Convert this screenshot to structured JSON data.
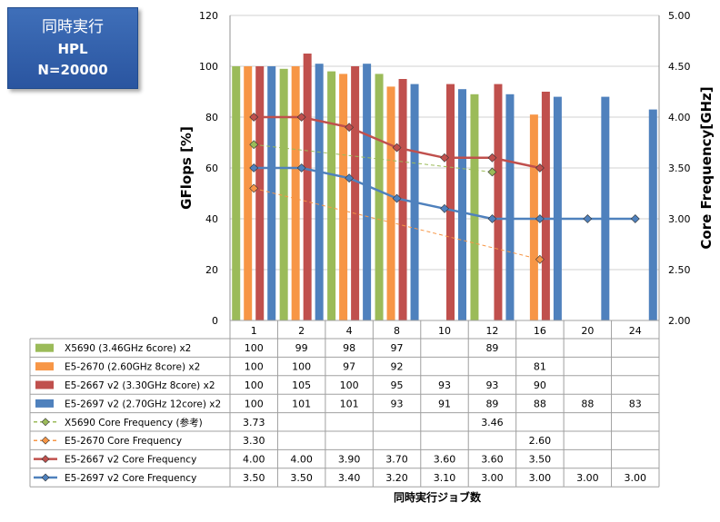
{
  "title_box": {
    "line1": "同時実行",
    "line2": "HPL",
    "line3": "N=20000"
  },
  "chart_data": {
    "type": "bar",
    "categories": [
      "1",
      "2",
      "4",
      "8",
      "10",
      "12",
      "16",
      "20",
      "24"
    ],
    "ylabel": "GFlops [%]",
    "y2label": "Core Frequency[GHz]",
    "xlabel": "同時実行ジョブ数",
    "ylim": [
      0,
      120
    ],
    "yticks": [
      "0",
      "20",
      "40",
      "60",
      "80",
      "100",
      "120"
    ],
    "y2lim": [
      2.0,
      5.0
    ],
    "y2ticks": [
      "2.00",
      "2.50",
      "3.00",
      "3.50",
      "4.00",
      "4.50",
      "5.00"
    ],
    "grid": true,
    "bar_series": [
      {
        "name": "X5690 (3.46GHz 6core) x2",
        "color": "#9bbb59",
        "values": [
          100,
          99,
          98,
          97,
          null,
          89,
          null,
          null,
          null
        ]
      },
      {
        "name": "E5-2670 (2.60GHz 8core) x2",
        "color": "#f79646",
        "values": [
          100,
          100,
          97,
          92,
          null,
          null,
          81,
          null,
          null
        ]
      },
      {
        "name": "E5-2667 v2 (3.30GHz 8core) x2",
        "color": "#c0504d",
        "values": [
          100,
          105,
          100,
          95,
          93,
          93,
          90,
          null,
          null
        ]
      },
      {
        "name": "E5-2697 v2 (2.70GHz 12core) x2",
        "color": "#4f81bd",
        "values": [
          100,
          101,
          101,
          93,
          91,
          89,
          88,
          88,
          83
        ]
      }
    ],
    "line_series": [
      {
        "name": "X5690 Core Frequency (参考)",
        "color": "#9bbb59",
        "dashed": true,
        "values": [
          3.73,
          null,
          null,
          null,
          null,
          3.46,
          null,
          null,
          null
        ]
      },
      {
        "name": "E5-2670 Core Frequency",
        "color": "#f79646",
        "dashed": true,
        "values": [
          3.3,
          null,
          null,
          null,
          null,
          null,
          2.6,
          null,
          null
        ]
      },
      {
        "name": "E5-2667 v2 Core Frequency",
        "color": "#c0504d",
        "dashed": false,
        "values": [
          4.0,
          4.0,
          3.9,
          3.7,
          3.6,
          3.6,
          3.5,
          null,
          null
        ]
      },
      {
        "name": "E5-2697 v2 Core Frequency",
        "color": "#4f81bd",
        "dashed": false,
        "values": [
          3.5,
          3.5,
          3.4,
          3.2,
          3.1,
          3.0,
          3.0,
          3.0,
          3.0
        ]
      }
    ],
    "table_rows": [
      [
        "100",
        "99",
        "98",
        "97",
        "",
        "89",
        "",
        "",
        ""
      ],
      [
        "100",
        "100",
        "97",
        "92",
        "",
        "",
        "81",
        "",
        ""
      ],
      [
        "100",
        "105",
        "100",
        "95",
        "93",
        "93",
        "90",
        "",
        ""
      ],
      [
        "100",
        "101",
        "101",
        "93",
        "91",
        "89",
        "88",
        "88",
        "83"
      ],
      [
        "3.73",
        "",
        "",
        "",
        "",
        "3.46",
        "",
        "",
        ""
      ],
      [
        "3.30",
        "",
        "",
        "",
        "",
        "",
        "2.60",
        "",
        ""
      ],
      [
        "4.00",
        "4.00",
        "3.90",
        "3.70",
        "3.60",
        "3.60",
        "3.50",
        "",
        ""
      ],
      [
        "3.50",
        "3.50",
        "3.40",
        "3.20",
        "3.10",
        "3.00",
        "3.00",
        "3.00",
        "3.00"
      ]
    ]
  }
}
